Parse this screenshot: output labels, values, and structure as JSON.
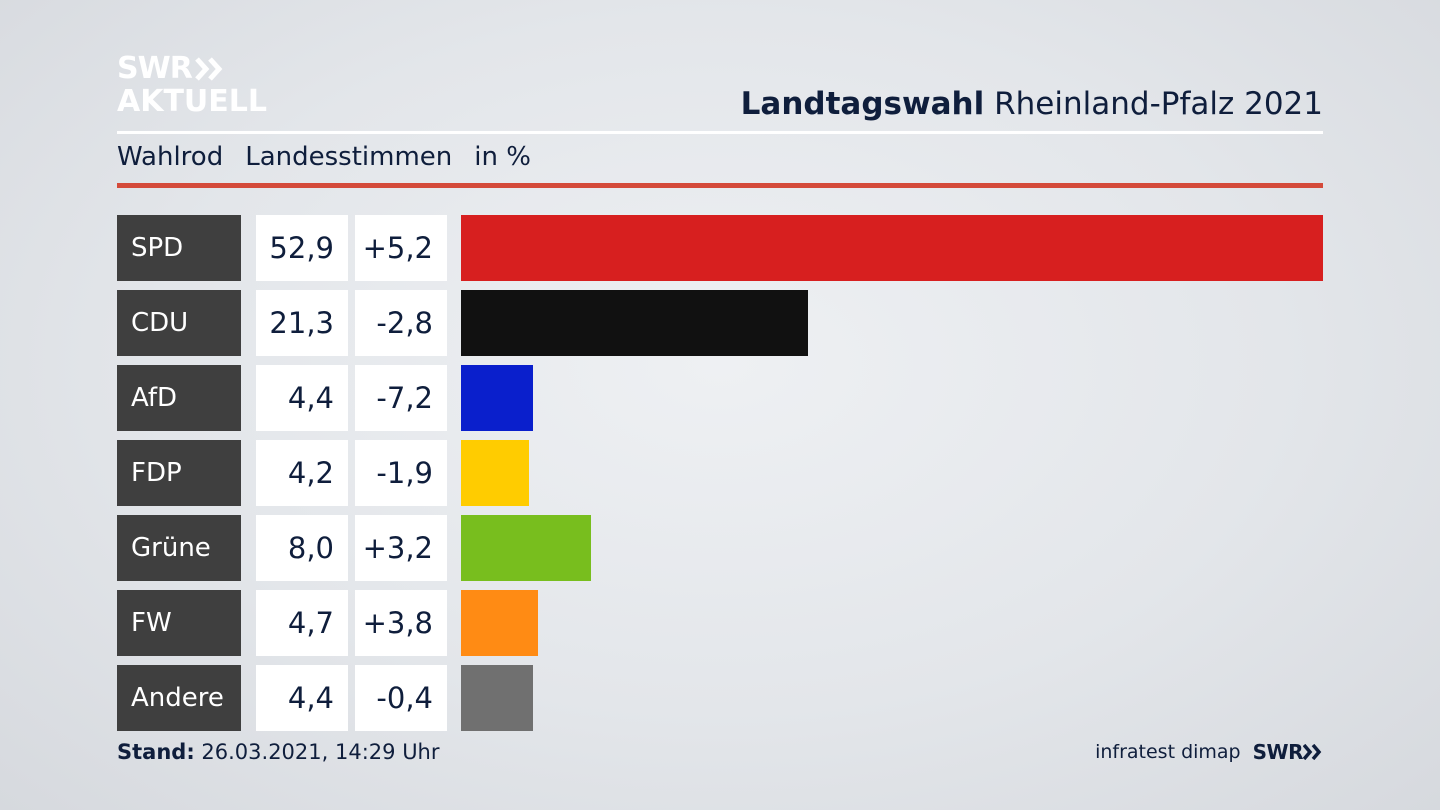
{
  "logo": {
    "line1": "SWR",
    "line2": "AKTUELL"
  },
  "header": {
    "title_bold": "Landtagswahl",
    "title_rest": "Rheinland-Pfalz 2021"
  },
  "subheader": {
    "place": "Wahlrod",
    "metric": "Landesstimmen",
    "unit": "in %"
  },
  "colors": {
    "accent_rule": "#d44a3a",
    "party_box": "#3f3f3f",
    "text": "#0f1e3c"
  },
  "chart_data": {
    "type": "bar",
    "orientation": "horizontal",
    "categories": [
      "SPD",
      "CDU",
      "AfD",
      "FDP",
      "Grüne",
      "FW",
      "Andere"
    ],
    "values": [
      52.9,
      21.3,
      4.4,
      4.2,
      8.0,
      4.7,
      4.4
    ],
    "value_labels": [
      "52,9",
      "21,3",
      "4,4",
      "4,2",
      "8,0",
      "4,7",
      "4,4"
    ],
    "changes": [
      5.2,
      -2.8,
      -7.2,
      -1.9,
      3.2,
      3.8,
      -0.4
    ],
    "change_labels": [
      "+5,2",
      "-2,8",
      "-7,2",
      "-1,9",
      "+3,2",
      "+3,8",
      "-0,4"
    ],
    "bar_colors": [
      "#d71f1f",
      "#111111",
      "#0a1fcc",
      "#ffcc00",
      "#78be1e",
      "#ff8b14",
      "#707070"
    ],
    "xlim": [
      0,
      52.9
    ],
    "grid": false
  },
  "footer": {
    "stand_label": "Stand:",
    "stand_value": "26.03.2021, 14:29 Uhr",
    "source": "infratest dimap",
    "brand": "SWR"
  }
}
